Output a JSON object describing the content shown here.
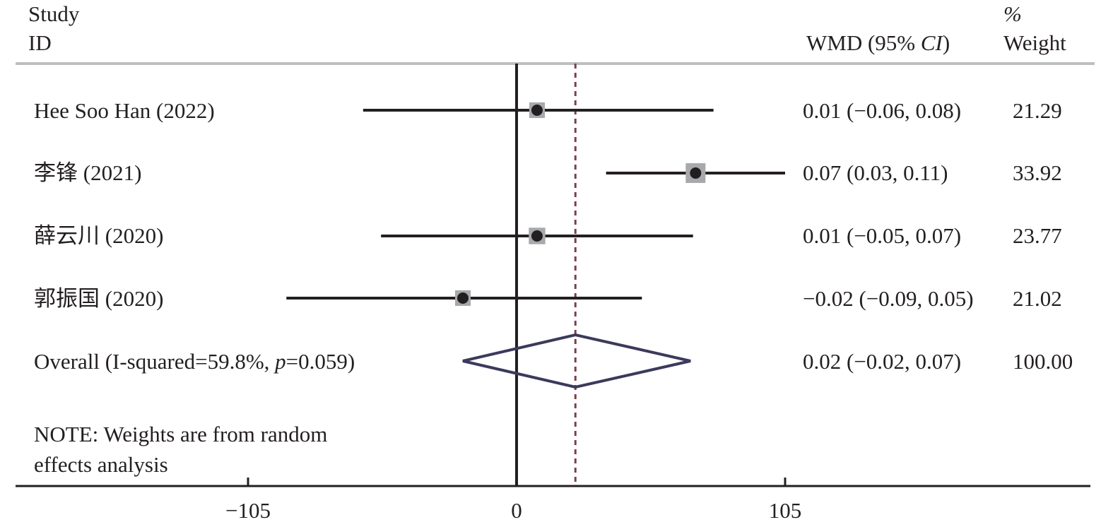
{
  "header": {
    "study_line1": "Study",
    "study_line2": "ID",
    "wmd_label_pre": "WMD (95% ",
    "wmd_label_ci": "CI",
    "wmd_label_post": ")",
    "weight_line1": "%",
    "weight_line2": "Weight"
  },
  "note": {
    "line1": "NOTE: Weights are from random",
    "line2": "effects analysis"
  },
  "colors": {
    "ink": "#231f20",
    "marker_box": "#a7a9ac",
    "dashed_line": "#7b3f4b",
    "diamond": "#3b3a5c",
    "header_rule": "#bcbec0"
  },
  "chart_data": {
    "type": "forest",
    "measure": "WMD (95% CI)",
    "xaxis": {
      "ticks": [
        -105,
        0,
        105
      ],
      "tick_labels": [
        "−105",
        "0",
        "105"
      ],
      "range": [
        -194,
        223
      ]
    },
    "null_line": 0,
    "studies": [
      {
        "label": "Hee Soo Han (2022)",
        "estimate": 8,
        "lower": -60,
        "upper": 77,
        "weight": 21.29,
        "ci_text": "0.01 (−0.06, 0.08)",
        "weight_text": "21.29"
      },
      {
        "label": "李锋 (2021)",
        "estimate": 70,
        "lower": 35,
        "upper": 105,
        "weight": 33.92,
        "ci_text": "0.07 (0.03, 0.11)",
        "weight_text": "33.92"
      },
      {
        "label": "薛云川 (2020)",
        "estimate": 8,
        "lower": -53,
        "upper": 69,
        "weight": 23.77,
        "ci_text": "0.01 (−0.05, 0.07)",
        "weight_text": "23.77"
      },
      {
        "label": "郭振国 (2020)",
        "estimate": -21,
        "lower": -90,
        "upper": 49,
        "weight": 21.02,
        "ci_text": "−0.02 (−0.09, 0.05)",
        "weight_text": "21.02"
      }
    ],
    "overall": {
      "label_pre": "Overall (I-squared=59.8%, ",
      "label_p": "p",
      "label_post": "=0.059)",
      "estimate": 23,
      "lower": -21,
      "upper": 68,
      "ci_text": "0.02 (−0.02, 0.07)",
      "weight_text": "100.00"
    }
  }
}
